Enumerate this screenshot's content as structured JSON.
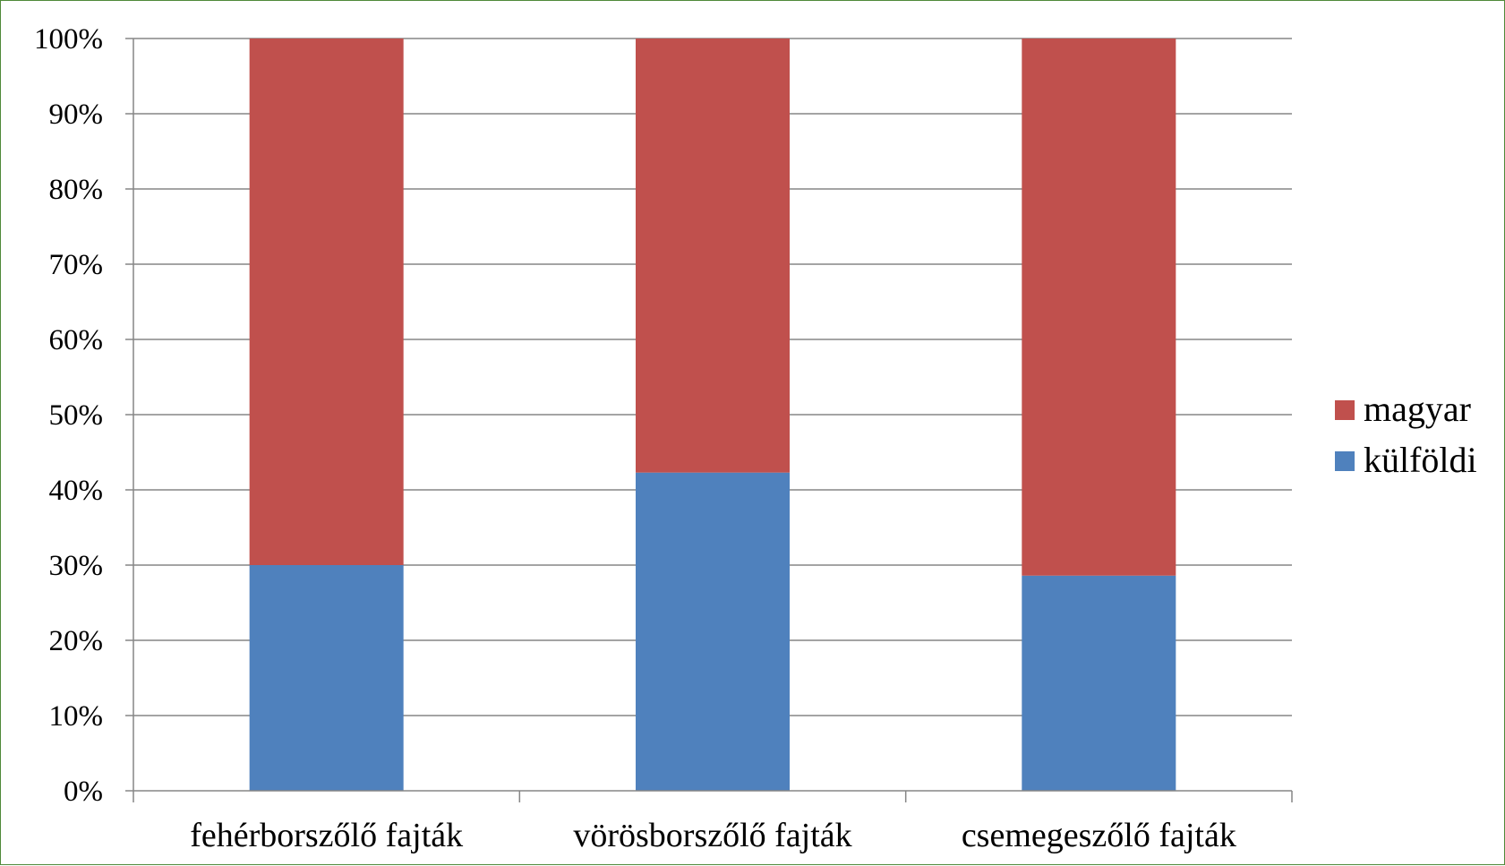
{
  "chart_data": {
    "type": "bar",
    "stacked": true,
    "categories": [
      "fehérborszőlő fajták",
      "vörösborszőlő fajták",
      "csemegeszőlő fajták"
    ],
    "series": [
      {
        "name": "külföldi",
        "values": [
          30,
          42.3,
          28.6
        ],
        "color": "#4f81bd"
      },
      {
        "name": "magyar",
        "values": [
          70,
          57.7,
          71.4
        ],
        "color": "#c0504d"
      }
    ],
    "yticks": [
      "0%",
      "10%",
      "20%",
      "30%",
      "40%",
      "50%",
      "60%",
      "70%",
      "80%",
      "90%",
      "100%"
    ],
    "ylim": [
      0,
      100
    ],
    "grid": true,
    "legend": {
      "placement": "right",
      "entries": [
        "magyar",
        "külföldi"
      ]
    },
    "colors": {
      "gridline": "#868686",
      "axis": "#868686",
      "frame": "#4f8a3a"
    }
  }
}
